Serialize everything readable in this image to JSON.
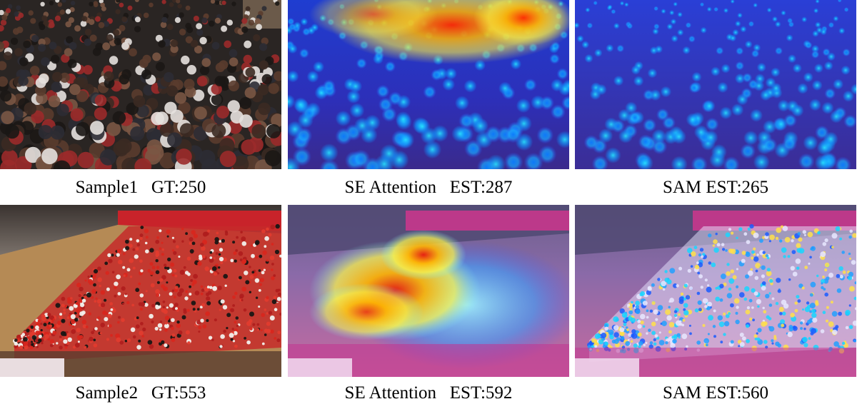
{
  "rows": [
    {
      "panels": [
        {
          "caption": "Sample1   GT:250",
          "kind": "photo"
        },
        {
          "caption": "SE Attention   EST:287",
          "kind": "se-heatmap"
        },
        {
          "caption": "SAM EST:265",
          "kind": "sam-heatmap"
        }
      ]
    },
    {
      "panels": [
        {
          "caption": "Sample2   GT:553",
          "kind": "photo"
        },
        {
          "caption": "SE Attention   EST:592",
          "kind": "se-heatmap"
        },
        {
          "caption": "SAM EST:560",
          "kind": "sam-heatmap"
        }
      ]
    }
  ]
}
